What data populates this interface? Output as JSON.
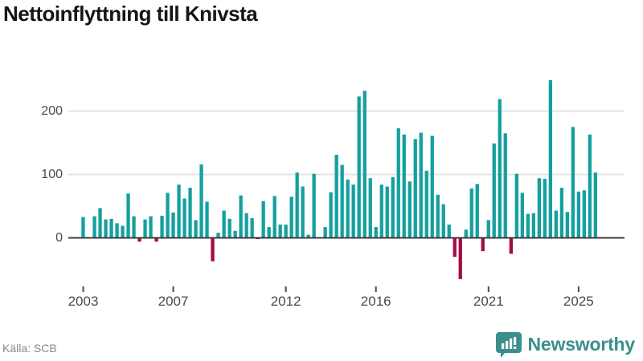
{
  "title": "Nettoinflyttning till Knivsta",
  "source": {
    "label": "Källa: SCB"
  },
  "brand": {
    "name": "Newsworthy"
  },
  "colors": {
    "positive": "#14A09F",
    "negative": "#A30C45",
    "grid": "#e4e4e4",
    "zero_line": "#3d3d3d",
    "tick": "#4a4a4a",
    "title": "#151515",
    "axis_text": "#4a4a4a",
    "source_text": "#85858d",
    "brand_teal": "#3a8f8b"
  },
  "chart_data": {
    "type": "bar",
    "title": "Nettoinflyttning till Knivsta",
    "xlabel": "",
    "ylabel": "",
    "x_unit": "quarter",
    "grid": "horizontal",
    "legend": "none",
    "ylim": [
      -80,
      265
    ],
    "yticks": [
      0,
      100,
      200
    ],
    "xticks": [
      "2003",
      "2007",
      "2012",
      "2016",
      "2021",
      "2025"
    ],
    "categories": [
      "2003Q1",
      "2003Q2",
      "2003Q3",
      "2003Q4",
      "2004Q1",
      "2004Q2",
      "2004Q3",
      "2004Q4",
      "2005Q1",
      "2005Q2",
      "2005Q3",
      "2005Q4",
      "2006Q1",
      "2006Q2",
      "2006Q3",
      "2006Q4",
      "2007Q1",
      "2007Q2",
      "2007Q3",
      "2007Q4",
      "2008Q1",
      "2008Q2",
      "2008Q3",
      "2008Q4",
      "2009Q1",
      "2009Q2",
      "2009Q3",
      "2009Q4",
      "2010Q1",
      "2010Q2",
      "2010Q3",
      "2010Q4",
      "2011Q1",
      "2011Q2",
      "2011Q3",
      "2011Q4",
      "2012Q1",
      "2012Q2",
      "2012Q3",
      "2012Q4",
      "2013Q1",
      "2013Q2",
      "2013Q3",
      "2013Q4",
      "2014Q1",
      "2014Q2",
      "2014Q3",
      "2014Q4",
      "2015Q1",
      "2015Q2",
      "2015Q3",
      "2015Q4",
      "2016Q1",
      "2016Q2",
      "2016Q3",
      "2016Q4",
      "2017Q1",
      "2017Q2",
      "2017Q3",
      "2017Q4",
      "2018Q1",
      "2018Q2",
      "2018Q3",
      "2018Q4",
      "2019Q1",
      "2019Q2",
      "2019Q3",
      "2019Q4",
      "2020Q1",
      "2020Q2",
      "2020Q3",
      "2020Q4",
      "2021Q1",
      "2021Q2",
      "2021Q3",
      "2021Q4",
      "2022Q1",
      "2022Q2",
      "2022Q3",
      "2022Q4",
      "2023Q1",
      "2023Q2",
      "2023Q3",
      "2023Q4",
      "2024Q1",
      "2024Q2",
      "2024Q3",
      "2024Q4",
      "2025Q1",
      "2025Q2",
      "2025Q3",
      "2025Q4"
    ],
    "values": [
      33,
      0,
      34,
      47,
      29,
      30,
      23,
      19,
      70,
      34,
      -6,
      29,
      34,
      -6,
      35,
      71,
      40,
      84,
      62,
      79,
      28,
      116,
      57,
      -37,
      8,
      43,
      30,
      11,
      67,
      39,
      31,
      -2,
      58,
      17,
      66,
      21,
      21,
      65,
      103,
      81,
      5,
      101,
      0,
      17,
      72,
      131,
      115,
      92,
      84,
      223,
      232,
      94,
      17,
      84,
      81,
      96,
      173,
      163,
      89,
      156,
      166,
      106,
      161,
      68,
      53,
      21,
      -30,
      -65,
      13,
      78,
      85,
      -21,
      28,
      149,
      219,
      165,
      -25,
      101,
      71,
      38,
      39,
      94,
      93,
      249,
      43,
      79,
      41,
      175,
      73,
      75,
      163,
      103
    ]
  }
}
